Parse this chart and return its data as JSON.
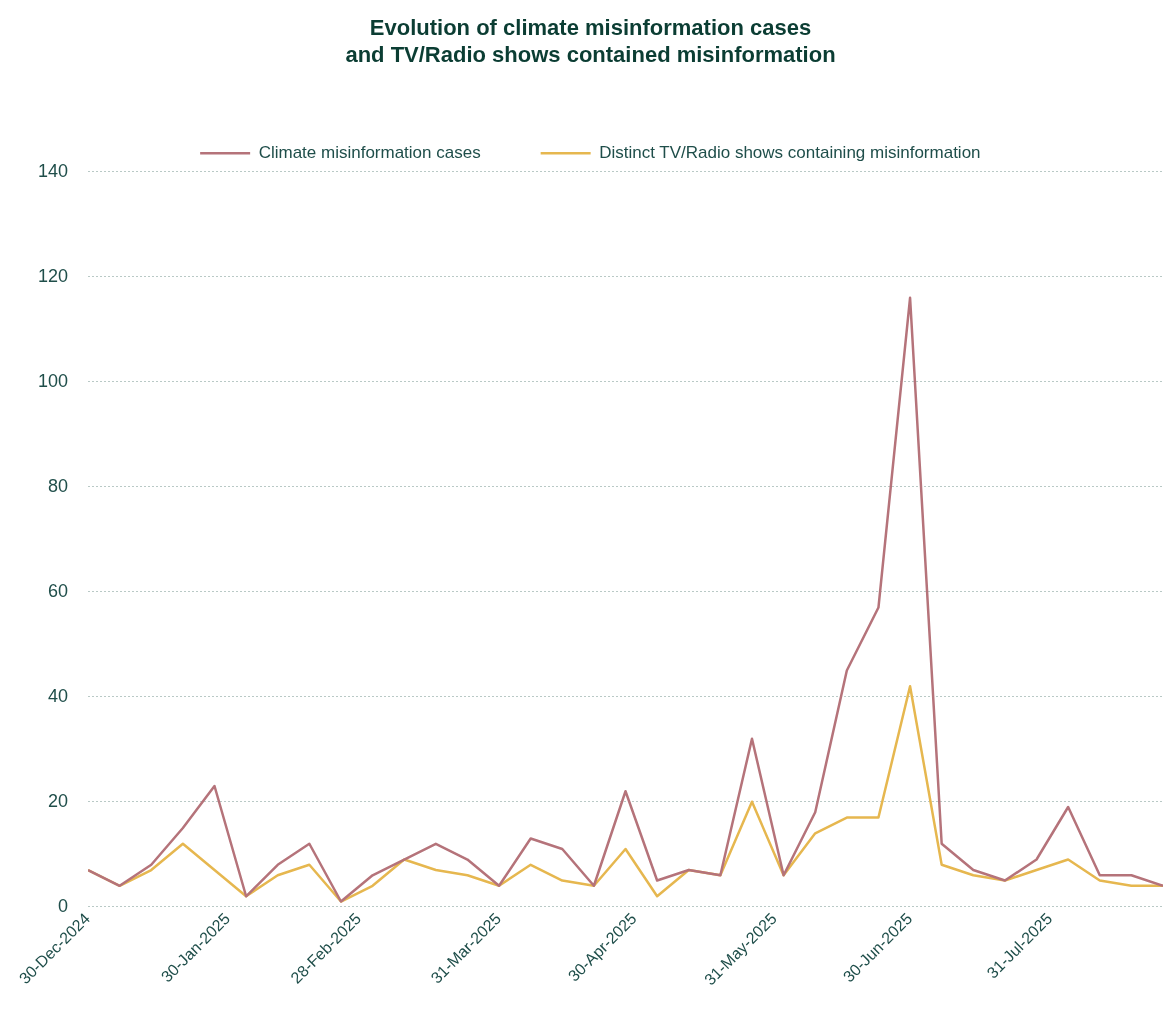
{
  "chart_data": {
    "type": "line",
    "title": "Evolution of climate misinformation cases\nand TV/Radio shows contained misinformation",
    "x": [
      "2024-12-30",
      "2025-01-06",
      "2025-01-13",
      "2025-01-20",
      "2025-01-27",
      "2025-02-03",
      "2025-02-10",
      "2025-02-17",
      "2025-02-24",
      "2025-03-03",
      "2025-03-10",
      "2025-03-17",
      "2025-03-24",
      "2025-03-31",
      "2025-04-07",
      "2025-04-14",
      "2025-04-21",
      "2025-04-28",
      "2025-05-05",
      "2025-05-12",
      "2025-05-19",
      "2025-05-26",
      "2025-06-02",
      "2025-06-09",
      "2025-06-16",
      "2025-06-23",
      "2025-06-30",
      "2025-07-07",
      "2025-07-14",
      "2025-07-21",
      "2025-07-28",
      "2025-08-04",
      "2025-08-11",
      "2025-08-18",
      "2025-08-25"
    ],
    "series": [
      {
        "name": "Climate misinformation cases",
        "color": "#b5737a",
        "values": [
          7,
          4,
          8,
          15,
          23,
          2,
          8,
          12,
          1,
          6,
          9,
          12,
          9,
          4,
          13,
          11,
          4,
          22,
          5,
          7,
          6,
          32,
          6,
          18,
          45,
          57,
          116,
          12,
          7,
          5,
          9,
          19,
          6,
          6,
          4
        ]
      },
      {
        "name": "Distinct TV/Radio shows containing misinformation",
        "color": "#e6b74f",
        "values": [
          7,
          4,
          7,
          12,
          7,
          2,
          6,
          8,
          1,
          4,
          9,
          7,
          6,
          4,
          8,
          5,
          4,
          11,
          2,
          7,
          6,
          20,
          6,
          14,
          17,
          17,
          42,
          8,
          6,
          5,
          7,
          9,
          5,
          4,
          4
        ]
      }
    ],
    "xlim": [
      "2024-12-30",
      "2025-08-25"
    ],
    "xticks": [
      {
        "value": "2024-12-30",
        "label": "30-Dec-2024"
      },
      {
        "value": "2025-01-30",
        "label": "30-Jan-2025"
      },
      {
        "value": "2025-02-28",
        "label": "28-Feb-2025"
      },
      {
        "value": "2025-03-31",
        "label": "31-Mar-2025"
      },
      {
        "value": "2025-04-30",
        "label": "30-Apr-2025"
      },
      {
        "value": "2025-05-31",
        "label": "31-May-2025"
      },
      {
        "value": "2025-06-30",
        "label": "30-Jun-2025"
      },
      {
        "value": "2025-07-31",
        "label": "31-Jul-2025"
      }
    ],
    "ylim": [
      0,
      140
    ],
    "yticks": [
      0,
      20,
      40,
      60,
      80,
      100,
      120,
      140
    ],
    "grid": "y",
    "legend": "top",
    "marker": "none",
    "line_style": "solid"
  }
}
